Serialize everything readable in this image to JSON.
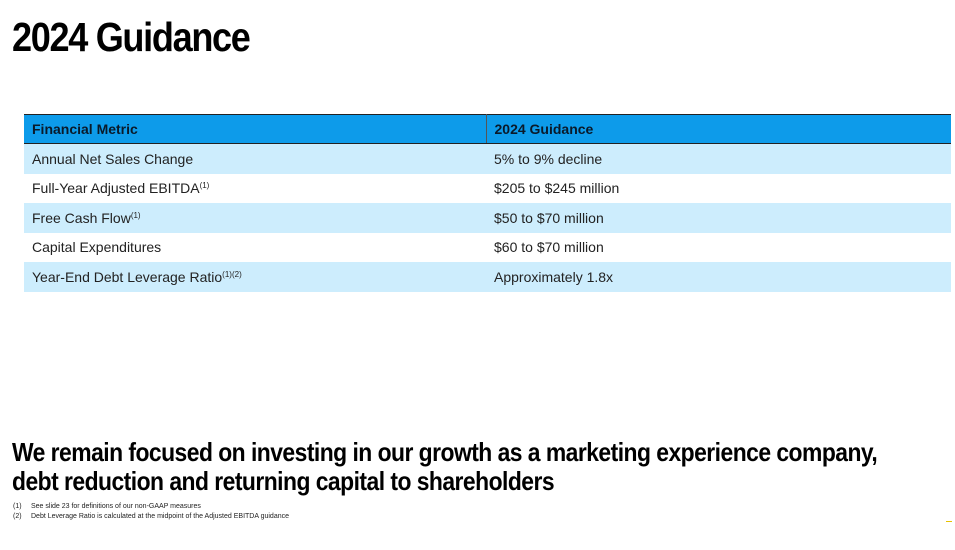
{
  "page": {
    "title": "2024 Guidance"
  },
  "table": {
    "headers": [
      "Financial Metric",
      "2024 Guidance"
    ],
    "rows": [
      {
        "metric": "Annual Net Sales Change",
        "sup": "",
        "guidance": "5% to 9% decline"
      },
      {
        "metric": "Full-Year Adjusted EBITDA",
        "sup": "(1)",
        "guidance": "$205 to $245 million"
      },
      {
        "metric": "Free Cash Flow",
        "sup": "(1)",
        "guidance": "$50 to $70 million"
      },
      {
        "metric": "Capital Expenditures",
        "sup": "",
        "guidance": "$60 to $70 million"
      },
      {
        "metric": "Year-End Debt Leverage Ratio",
        "sup": "(1)(2)",
        "guidance": "Approximately 1.8x"
      }
    ]
  },
  "tagline": "We remain focused on investing in our growth as a marketing experience company, debt reduction and returning capital to shareholders",
  "footnotes": [
    {
      "num": "(1)",
      "text": "See slide 23 for definitions of our non-GAAP measures"
    },
    {
      "num": "(2)",
      "text": "Debt Leverage Ratio is calculated at the midpoint of the Adjusted EBITDA guidance"
    }
  ]
}
